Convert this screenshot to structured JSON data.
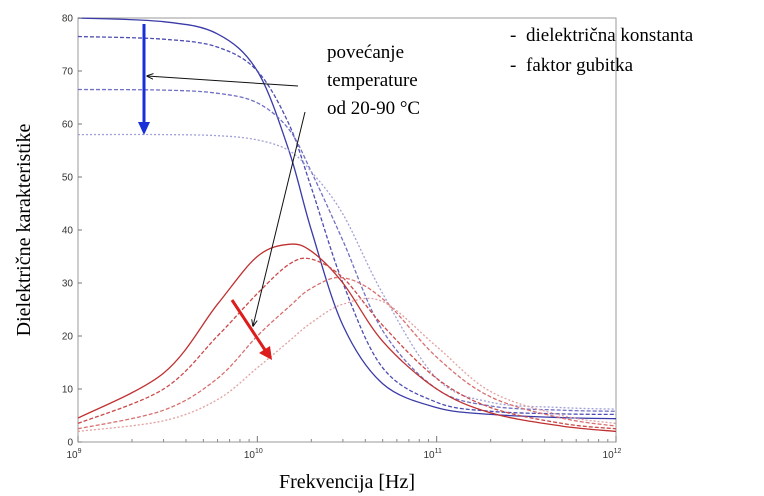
{
  "chart_data": {
    "type": "line",
    "xlabel": "Frekvencija [Hz]",
    "ylabel": "Dielektrične karakteristike",
    "x_scale": "log",
    "xlim": [
      1000000000,
      1000000000000
    ],
    "ylim": [
      0,
      80
    ],
    "grid": false,
    "x_ticks": [
      {
        "value": 1000000000,
        "base": "10",
        "exp": "9"
      },
      {
        "value": 10000000000,
        "base": "10",
        "exp": "10"
      },
      {
        "value": 100000000000,
        "base": "10",
        "exp": "11"
      },
      {
        "value": 1000000000000,
        "base": "10",
        "exp": "12"
      }
    ],
    "y_ticks": [
      "0",
      "10",
      "20",
      "30",
      "40",
      "50",
      "60",
      "70",
      "80"
    ],
    "legend": {
      "position": "top-right",
      "entries": [
        {
          "marker": "-",
          "label": "dielektrična konstanta",
          "color": "#3a55b4"
        },
        {
          "marker": "-",
          "label": "faktor gubitka",
          "color": "#d42020"
        }
      ]
    },
    "annotation": {
      "lines": [
        "povećanje",
        "temperature",
        "od 20-90 °C"
      ]
    },
    "series": [
      {
        "color": "#3a3aa8",
        "style": "solid",
        "x": [
          1000000000.0,
          3000000000.0,
          6000000000.0,
          10000000000.0,
          15000000000.0,
          20000000000.0,
          30000000000.0,
          50000000000.0,
          100000000000.0,
          200000000000.0,
          500000000000.0,
          1000000000000.0
        ],
        "y": [
          80,
          79.3,
          77,
          70,
          55,
          40,
          22,
          11,
          6.5,
          5.2,
          4.6,
          4.4
        ]
      },
      {
        "color": "#4c4cb2",
        "style": "dashed",
        "x": [
          1000000000.0,
          3000000000.0,
          6000000000.0,
          10000000000.0,
          15000000000.0,
          20000000000.0,
          30000000000.0,
          50000000000.0,
          100000000000.0,
          200000000000.0,
          500000000000.0,
          1000000000000.0
        ],
        "y": [
          76.5,
          76,
          74.5,
          70,
          60,
          48,
          30,
          14,
          7.5,
          5.8,
          5.3,
          5.2
        ]
      },
      {
        "color": "#7070c4",
        "style": "dashed",
        "x": [
          1000000000.0,
          3000000000.0,
          6000000000.0,
          10000000000.0,
          15000000000.0,
          20000000000.0,
          30000000000.0,
          50000000000.0,
          100000000000.0,
          200000000000.0,
          500000000000.0,
          1000000000000.0
        ],
        "y": [
          66.5,
          66.4,
          65.8,
          64,
          59,
          51,
          38,
          21,
          10,
          6.8,
          6,
          5.8
        ]
      },
      {
        "color": "#a0a0d8",
        "style": "dotted",
        "x": [
          1000000000.0,
          3000000000.0,
          6000000000.0,
          10000000000.0,
          15000000000.0,
          20000000000.0,
          30000000000.0,
          50000000000.0,
          100000000000.0,
          200000000000.0,
          500000000000.0,
          1000000000000.0
        ],
        "y": [
          58,
          58,
          57.8,
          57,
          55,
          51,
          43,
          28,
          12,
          7.5,
          6.5,
          6.2
        ]
      },
      {
        "color": "#c03030",
        "style": "solid",
        "x": [
          1000000000.0,
          3000000000.0,
          6000000000.0,
          10000000000.0,
          15000000000.0,
          20000000000.0,
          30000000000.0,
          50000000000.0,
          100000000000.0,
          200000000000.0,
          500000000000.0,
          1000000000000.0
        ],
        "y": [
          4.5,
          13,
          26,
          35,
          37.3,
          36,
          30,
          19,
          10,
          5.5,
          3,
          2
        ]
      },
      {
        "color": "#cc4848",
        "style": "dashed",
        "x": [
          1000000000.0,
          3000000000.0,
          6000000000.0,
          10000000000.0,
          15000000000.0,
          20000000000.0,
          30000000000.0,
          50000000000.0,
          100000000000.0,
          200000000000.0,
          500000000000.0,
          1000000000000.0
        ],
        "y": [
          3.5,
          10,
          20,
          28,
          33.5,
          34.5,
          31,
          22,
          12,
          6.5,
          3.5,
          2.5
        ]
      },
      {
        "color": "#d87070",
        "style": "dashed",
        "x": [
          1000000000.0,
          3000000000.0,
          6000000000.0,
          10000000000.0,
          15000000000.0,
          20000000000.0,
          30000000000.0,
          50000000000.0,
          100000000000.0,
          200000000000.0,
          500000000000.0,
          1000000000000.0
        ],
        "y": [
          2.5,
          6,
          12,
          20,
          25.5,
          29,
          31,
          27,
          16,
          8.5,
          4.5,
          3
        ]
      },
      {
        "color": "#e4a0a0",
        "style": "dotted",
        "x": [
          1000000000.0,
          3000000000.0,
          6000000000.0,
          10000000000.0,
          15000000000.0,
          20000000000.0,
          30000000000.0,
          50000000000.0,
          100000000000.0,
          200000000000.0,
          500000000000.0,
          1000000000000.0
        ],
        "y": [
          2,
          4,
          8,
          14,
          19,
          22.5,
          26,
          26.5,
          18,
          9.5,
          5,
          3.5
        ]
      }
    ]
  }
}
